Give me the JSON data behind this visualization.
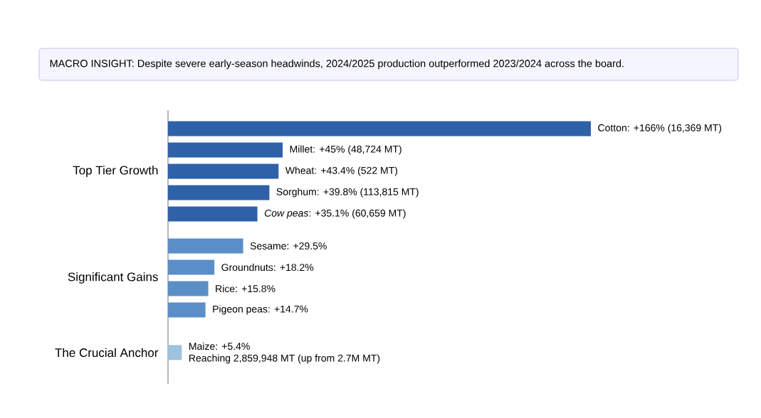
{
  "chart_data": {
    "type": "bar",
    "orientation": "horizontal",
    "title": "MACRO INSIGHT: Despite severe early-season headwinds, 2024/2025 production outperformed 2023/2024 across the board.",
    "categories": [
      null,
      null,
      null,
      null,
      null,
      null,
      null,
      null,
      null,
      null
    ],
    "values": [
      166,
      45,
      43.4,
      39.8,
      35.1,
      29.5,
      18.2,
      15.8,
      14.7,
      5.4
    ],
    "colors": [
      "#2e62a8",
      "#2e62a8",
      "#2e62a8",
      "#2e62a8",
      "#2e62a8",
      "#5a8ec6",
      "#5a8ec6",
      "#5a8ec6",
      "#5a8ec6",
      "#9cc3df"
    ],
    "value_labels": [
      "Cotton: +166% (16,369 MT)",
      "Millet: +45% (48,724 MT)",
      "Wheat: +43.4% (522 MT)",
      "Sorghum: +39.8% (113,815 MT)",
      "*Cow peas*: +35.1% (60,659 MT)",
      "Sesame: +29.5%",
      "Groundnuts: +18.2%",
      "Rice: +15.8%",
      "Pigeon peas: +14.7%",
      "Maize: +5.4%"
    ],
    "annotations": [
      "Top Tier Growth",
      "Significant Gains",
      "The Crucial Anchor",
      "Reaching 2,859,948 MT (up from 2.7M MT)"
    ]
  }
}
